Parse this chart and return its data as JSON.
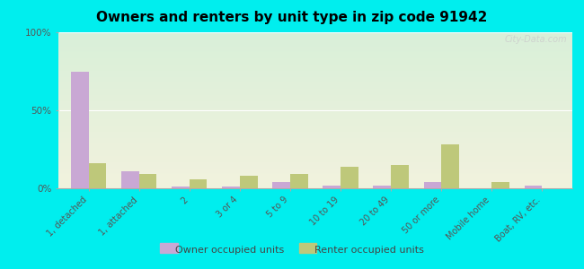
{
  "title": "Owners and renters by unit type in zip code 91942",
  "categories": [
    "1, detached",
    "1, attached",
    "2",
    "3 or 4",
    "5 to 9",
    "10 to 19",
    "20 to 49",
    "50 or more",
    "Mobile home",
    "Boat, RV, etc."
  ],
  "owner_values": [
    75,
    11,
    1,
    1,
    4,
    2,
    2,
    4,
    0,
    2
  ],
  "renter_values": [
    16,
    9,
    6,
    8,
    9,
    14,
    15,
    28,
    4,
    0
  ],
  "owner_color": "#c9a8d4",
  "renter_color": "#bec87a",
  "outer_background": "#00eeee",
  "ylim": [
    0,
    100
  ],
  "yticks": [
    0,
    50,
    100
  ],
  "ytick_labels": [
    "0%",
    "50%",
    "100%"
  ],
  "bar_width": 0.35,
  "legend_owner": "Owner occupied units",
  "legend_renter": "Renter occupied units",
  "plot_bg_top": "#d8edd8",
  "plot_bg_bottom": "#f0f0d8"
}
